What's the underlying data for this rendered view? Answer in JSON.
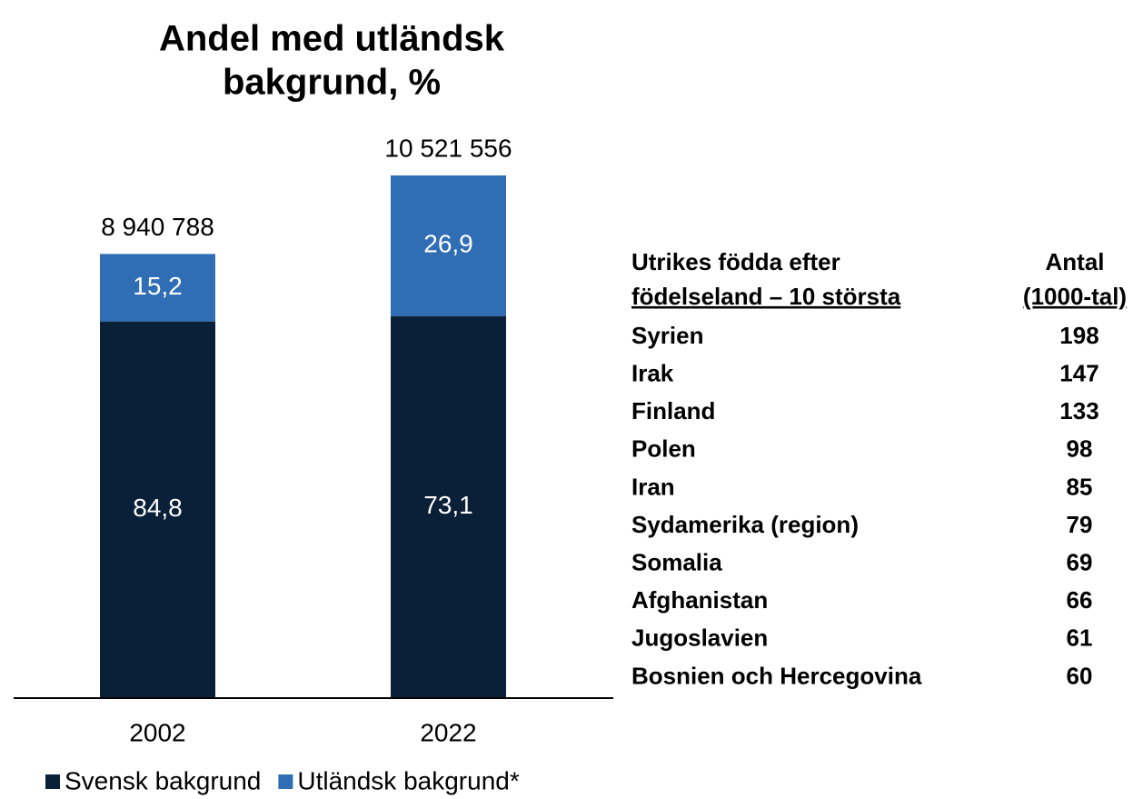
{
  "chart_data": {
    "type": "bar",
    "title": [
      "Andel med utländsk",
      "bakgrund, %"
    ],
    "categories": [
      "2002",
      "2022"
    ],
    "totals": [
      8940788,
      10521556
    ],
    "total_labels": [
      "8 940 788",
      "10 521 556"
    ],
    "series": [
      {
        "name": "Svensk bakgrund",
        "color": "#0a1f38",
        "values": [
          84.8,
          73.1
        ],
        "value_labels": [
          "84,8",
          "73,1"
        ]
      },
      {
        "name": "Utländsk bakgrund*",
        "color": "#2f6db5",
        "values": [
          15.2,
          26.9
        ],
        "value_labels": [
          "15,2",
          "26,9"
        ]
      }
    ]
  },
  "table": {
    "header": [
      [
        "Utrikes födda efter",
        "födelseland – 10 största"
      ],
      [
        "Antal",
        "(1000-tal)"
      ]
    ],
    "rows": [
      [
        "Syrien",
        198
      ],
      [
        "Irak",
        147
      ],
      [
        "Finland",
        133
      ],
      [
        "Polen",
        98
      ],
      [
        "Iran",
        85
      ],
      [
        "Sydamerika (region)",
        79
      ],
      [
        "Somalia",
        69
      ],
      [
        "Afghanistan",
        66
      ],
      [
        "Jugoslavien",
        61
      ],
      [
        "Bosnien och Hercegovina",
        60
      ]
    ]
  }
}
